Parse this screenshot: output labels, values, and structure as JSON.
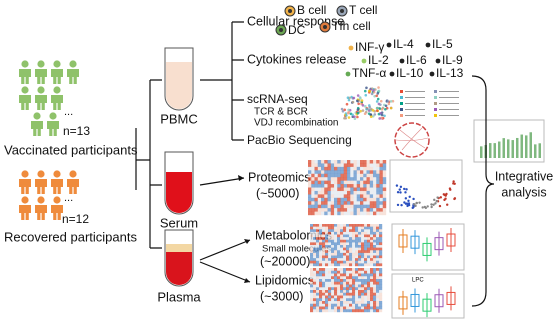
{
  "participants": [
    {
      "count": "n=13",
      "ellipsis": "...",
      "label": "Vaccinated participants"
    },
    {
      "count": "n=12",
      "ellipsis": "...",
      "label": "Recovered participants"
    }
  ],
  "samples": [
    "PBMC",
    "Serum",
    "Plasma"
  ],
  "pbmc": {
    "cellular_response": {
      "title": "Cellular response",
      "cells": [
        "B cell",
        "T cell",
        "DC",
        "Tfh cell"
      ]
    },
    "cytokines": {
      "title": "Cytokines release",
      "items": [
        "INF-γ",
        "IL-4",
        "IL-5",
        "IL-2",
        "IL-6",
        "IL-9",
        "TNF-α",
        "IL-10",
        "IL-13"
      ]
    },
    "scrna": {
      "title": "scRNA-seq",
      "lines": [
        "TCR & BCR",
        "VDJ recombination"
      ]
    },
    "pacbio": {
      "title": "PacBio Sequencing"
    }
  },
  "serum": {
    "title": "Proteomics",
    "count": "(~5000)"
  },
  "plasma": {
    "metabolomics": {
      "title": "Metabolomics",
      "subtitle": "Small molecules",
      "count": "(~20000)"
    },
    "lipidomics": {
      "title": "Lipidomics",
      "count": "(~3000)",
      "plot_label": "LPC"
    }
  },
  "integrative": [
    "Integrative",
    "analysis"
  ]
}
